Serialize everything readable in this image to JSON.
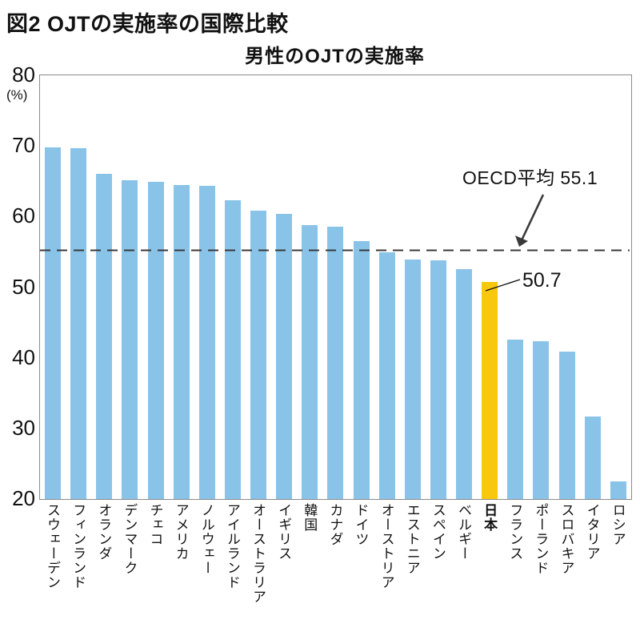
{
  "page_title": "図2 OJTの実施率の国際比較",
  "chart_data": {
    "type": "bar",
    "title": "男性のOJTの実施率",
    "unit_label": "(%)",
    "ylim": [
      20,
      80
    ],
    "yticks": [
      80,
      70,
      60,
      50,
      40,
      30,
      20
    ],
    "grid": false,
    "categories": [
      "スウェーデン",
      "フィンランド",
      "オランダ",
      "デンマーク",
      "チェコ",
      "アメリカ",
      "ノルウェー",
      "アイルランド",
      "オーストラリア",
      "イギリス",
      "韓国",
      "カナダ",
      "ドイツ",
      "オーストリア",
      "エストニア",
      "スペイン",
      "ベルギー",
      "日本",
      "フランス",
      "ポーランド",
      "スロバキア",
      "イタリア",
      "ロシア"
    ],
    "values": [
      69.8,
      69.7,
      66.0,
      65.2,
      64.9,
      64.5,
      64.3,
      62.3,
      60.8,
      60.4,
      58.8,
      58.6,
      56.5,
      54.9,
      53.9,
      53.8,
      52.6,
      50.7,
      42.6,
      42.3,
      40.9,
      31.7,
      22.5
    ],
    "highlight_category": "日本",
    "highlight_index": 17,
    "highlight_value_label": "50.7",
    "reference_line": {
      "value": 55.1,
      "label": "OECD平均 55.1",
      "style": "dashed"
    },
    "colors": {
      "bar": "#89C3E8",
      "highlight_bar": "#F8C80E",
      "axis_border": "#8b8b8b",
      "reference_line": "#3a3a3a",
      "text": "#111111"
    }
  }
}
